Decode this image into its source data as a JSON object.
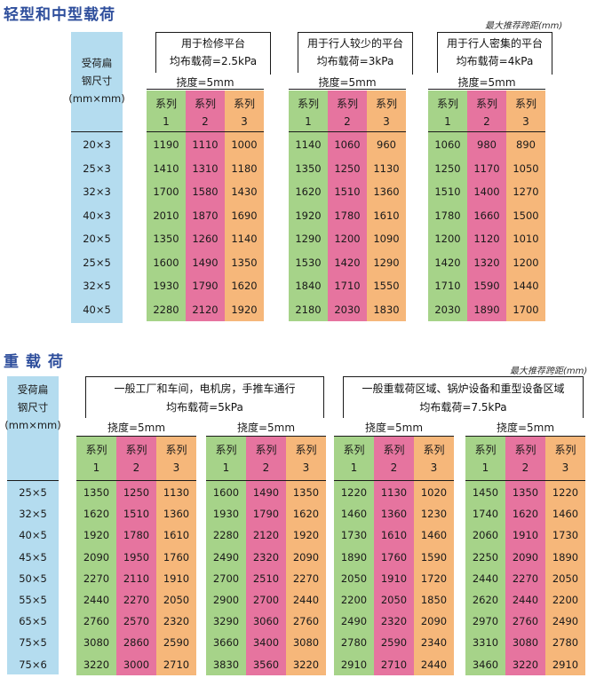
{
  "section1": {
    "title": "轻型和中型载荷",
    "unit_note": "最大推荐跨距(mm)",
    "size_header": [
      "受荷扁",
      "钢尺寸",
      "(mm×mm)"
    ],
    "sizes": [
      "20×3",
      "25×3",
      "32×3",
      "40×3",
      "20×5",
      "25×5",
      "32×5",
      "40×5"
    ],
    "deflection": "挠度=5mm",
    "series_word": "系列",
    "series_nums": [
      "1",
      "2",
      "3"
    ],
    "groups": [
      {
        "purpose": "用于检修平台",
        "load": "均布载荷=2.5kPa",
        "rows": [
          [
            "1190",
            "1110",
            "1000"
          ],
          [
            "1410",
            "1310",
            "1180"
          ],
          [
            "1700",
            "1580",
            "1430"
          ],
          [
            "2010",
            "1870",
            "1690"
          ],
          [
            "1350",
            "1260",
            "1140"
          ],
          [
            "1600",
            "1490",
            "1350"
          ],
          [
            "1930",
            "1790",
            "1620"
          ],
          [
            "2280",
            "2120",
            "1920"
          ]
        ]
      },
      {
        "purpose": "用于行人较少的平台",
        "load": "均布载荷=3kPa",
        "rows": [
          [
            "1140",
            "1060",
            "960"
          ],
          [
            "1350",
            "1250",
            "1130"
          ],
          [
            "1620",
            "1510",
            "1360"
          ],
          [
            "1920",
            "1780",
            "1610"
          ],
          [
            "1290",
            "1200",
            "1090"
          ],
          [
            "1530",
            "1420",
            "1290"
          ],
          [
            "1840",
            "1710",
            "1550"
          ],
          [
            "2180",
            "2030",
            "1830"
          ]
        ]
      },
      {
        "purpose": "用于行人密集的平台",
        "load": "均布载荷=4kPa",
        "rows": [
          [
            "1060",
            "980",
            "890"
          ],
          [
            "1250",
            "1170",
            "1050"
          ],
          [
            "1510",
            "1400",
            "1270"
          ],
          [
            "1780",
            "1660",
            "1500"
          ],
          [
            "1200",
            "1120",
            "1010"
          ],
          [
            "1420",
            "1320",
            "1200"
          ],
          [
            "1710",
            "1590",
            "1440"
          ],
          [
            "2030",
            "1890",
            "1700"
          ]
        ]
      }
    ]
  },
  "section2": {
    "title": "重 载 荷",
    "unit_note": "最大推荐跨距(mm)",
    "size_header": [
      "受荷扁",
      "钢尺寸",
      "(mm×mm)"
    ],
    "sizes": [
      "25×5",
      "32×5",
      "40×5",
      "45×5",
      "50×5",
      "55×5",
      "65×5",
      "75×5",
      "75×6"
    ],
    "deflection": "挠度=5mm",
    "series_word": "系列",
    "series_nums": [
      "1",
      "2",
      "3"
    ],
    "groups": [
      {
        "purpose": "一般工厂和车间，电机房，手推车通行",
        "load": "均布载荷=5kPa",
        "subtables": [
          {
            "rows": [
              [
                "1350",
                "1250",
                "1130"
              ],
              [
                "1620",
                "1510",
                "1360"
              ],
              [
                "1920",
                "1780",
                "1610"
              ],
              [
                "2090",
                "1950",
                "1760"
              ],
              [
                "2270",
                "2110",
                "1910"
              ],
              [
                "2440",
                "2270",
                "2050"
              ],
              [
                "2760",
                "2570",
                "2320"
              ],
              [
                "3080",
                "2860",
                "2590"
              ],
              [
                "3220",
                "3000",
                "2710"
              ]
            ]
          },
          {
            "rows": [
              [
                "1600",
                "1490",
                "1350"
              ],
              [
                "1930",
                "1790",
                "1620"
              ],
              [
                "2280",
                "2120",
                "1920"
              ],
              [
                "2490",
                "2320",
                "2090"
              ],
              [
                "2700",
                "2510",
                "2270"
              ],
              [
                "2900",
                "2700",
                "2440"
              ],
              [
                "3290",
                "3060",
                "2760"
              ],
              [
                "3660",
                "3400",
                "3080"
              ],
              [
                "3830",
                "3560",
                "3220"
              ]
            ]
          }
        ]
      },
      {
        "purpose": "一般重载荷区域、锅炉设备和重型设备区域",
        "load": "均布载荷=7.5kPa",
        "subtables": [
          {
            "rows": [
              [
                "1220",
                "1130",
                "1020"
              ],
              [
                "1460",
                "1360",
                "1230"
              ],
              [
                "1730",
                "1610",
                "1460"
              ],
              [
                "1890",
                "1760",
                "1590"
              ],
              [
                "2050",
                "1910",
                "1720"
              ],
              [
                "2200",
                "2050",
                "1850"
              ],
              [
                "2490",
                "2320",
                "2090"
              ],
              [
                "2780",
                "2590",
                "2340"
              ],
              [
                "2910",
                "2710",
                "2440"
              ]
            ]
          },
          {
            "rows": [
              [
                "1450",
                "1350",
                "1220"
              ],
              [
                "1740",
                "1620",
                "1460"
              ],
              [
                "2060",
                "1910",
                "1730"
              ],
              [
                "2250",
                "2090",
                "1890"
              ],
              [
                "2440",
                "2270",
                "2050"
              ],
              [
                "2620",
                "2440",
                "2200"
              ],
              [
                "2970",
                "2760",
                "2490"
              ],
              [
                "3310",
                "3080",
                "2780"
              ],
              [
                "3460",
                "3220",
                "2910"
              ]
            ]
          }
        ]
      }
    ]
  }
}
